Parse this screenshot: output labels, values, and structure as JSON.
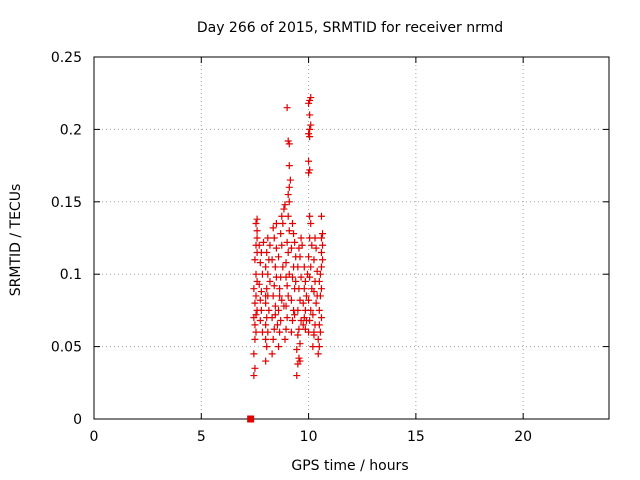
{
  "chart_data": {
    "type": "scatter",
    "title": "Day 266 of 2015, SRMTID for receiver nrmd",
    "xlabel": "GPS time / hours",
    "ylabel": "SRMTID / TECUs",
    "xlim": [
      0,
      24
    ],
    "ylim": [
      0,
      0.25
    ],
    "xticks": [
      0,
      5,
      10,
      15,
      20
    ],
    "yticks": [
      0,
      0.05,
      0.1,
      0.15,
      0.2,
      0.25
    ],
    "xtick_labels": [
      "0",
      "5",
      "10",
      "15",
      "20"
    ],
    "ytick_labels": [
      "0",
      "0.05",
      "0.1",
      "0.15",
      "0.2",
      "0.25"
    ],
    "grid": true,
    "marker_color": "#e00000",
    "points": [
      [
        7.45,
        0.03
      ],
      [
        7.5,
        0.035
      ],
      [
        7.45,
        0.045
      ],
      [
        7.5,
        0.055
      ],
      [
        7.55,
        0.06
      ],
      [
        7.5,
        0.065
      ],
      [
        7.45,
        0.07
      ],
      [
        7.55,
        0.072
      ],
      [
        7.6,
        0.075
      ],
      [
        7.5,
        0.08
      ],
      [
        7.55,
        0.085
      ],
      [
        7.45,
        0.09
      ],
      [
        7.6,
        0.095
      ],
      [
        7.55,
        0.1
      ],
      [
        7.5,
        0.11
      ],
      [
        7.6,
        0.115
      ],
      [
        7.55,
        0.12
      ],
      [
        7.6,
        0.125
      ],
      [
        7.6,
        0.13
      ],
      [
        7.55,
        0.135
      ],
      [
        7.6,
        0.138
      ],
      [
        7.75,
        0.082
      ],
      [
        7.8,
        0.088
      ],
      [
        7.7,
        0.093
      ],
      [
        7.85,
        0.1
      ],
      [
        7.75,
        0.108
      ],
      [
        7.8,
        0.115
      ],
      [
        7.7,
        0.12
      ],
      [
        7.9,
        0.122
      ],
      [
        7.8,
        0.075
      ],
      [
        7.75,
        0.068
      ],
      [
        7.85,
        0.06
      ],
      [
        8.0,
        0.04
      ],
      [
        8.05,
        0.05
      ],
      [
        8.0,
        0.055
      ],
      [
        8.1,
        0.06
      ],
      [
        8.0,
        0.065
      ],
      [
        8.05,
        0.07
      ],
      [
        8.15,
        0.075
      ],
      [
        8.0,
        0.08
      ],
      [
        8.1,
        0.085
      ],
      [
        8.05,
        0.09
      ],
      [
        8.2,
        0.095
      ],
      [
        8.1,
        0.1
      ],
      [
        8.0,
        0.105
      ],
      [
        8.15,
        0.11
      ],
      [
        8.05,
        0.115
      ],
      [
        8.2,
        0.12
      ],
      [
        8.1,
        0.125
      ],
      [
        8.0,
        0.085
      ],
      [
        8.3,
        0.045
      ],
      [
        8.35,
        0.055
      ],
      [
        8.4,
        0.062
      ],
      [
        8.3,
        0.07
      ],
      [
        8.45,
        0.078
      ],
      [
        8.35,
        0.085
      ],
      [
        8.4,
        0.092
      ],
      [
        8.5,
        0.098
      ],
      [
        8.45,
        0.105
      ],
      [
        8.3,
        0.11
      ],
      [
        8.5,
        0.118
      ],
      [
        8.4,
        0.125
      ],
      [
        8.35,
        0.132
      ],
      [
        8.5,
        0.135
      ],
      [
        8.45,
        0.072
      ],
      [
        8.55,
        0.065
      ],
      [
        8.6,
        0.05
      ],
      [
        8.65,
        0.06
      ],
      [
        8.7,
        0.068
      ],
      [
        8.6,
        0.075
      ],
      [
        8.75,
        0.082
      ],
      [
        8.65,
        0.09
      ],
      [
        8.7,
        0.098
      ],
      [
        8.8,
        0.105
      ],
      [
        8.6,
        0.112
      ],
      [
        8.75,
        0.12
      ],
      [
        8.7,
        0.128
      ],
      [
        8.8,
        0.135
      ],
      [
        8.75,
        0.14
      ],
      [
        8.85,
        0.145
      ],
      [
        8.9,
        0.148
      ],
      [
        8.65,
        0.085
      ],
      [
        8.85,
        0.078
      ],
      [
        8.9,
        0.055
      ],
      [
        8.95,
        0.062
      ],
      [
        9.0,
        0.07
      ],
      [
        8.95,
        0.078
      ],
      [
        9.05,
        0.085
      ],
      [
        9.0,
        0.092
      ],
      [
        9.1,
        0.1
      ],
      [
        8.95,
        0.108
      ],
      [
        9.05,
        0.115
      ],
      [
        9.0,
        0.122
      ],
      [
        9.1,
        0.13
      ],
      [
        9.05,
        0.14
      ],
      [
        9.1,
        0.15
      ],
      [
        9.05,
        0.155
      ],
      [
        9.1,
        0.16
      ],
      [
        9.15,
        0.165
      ],
      [
        9.1,
        0.175
      ],
      [
        9.05,
        0.192
      ],
      [
        9.1,
        0.19
      ],
      [
        9.0,
        0.215
      ],
      [
        8.95,
        0.098
      ],
      [
        9.2,
        0.06
      ],
      [
        9.25,
        0.068
      ],
      [
        9.3,
        0.075
      ],
      [
        9.2,
        0.082
      ],
      [
        9.35,
        0.09
      ],
      [
        9.25,
        0.098
      ],
      [
        9.3,
        0.105
      ],
      [
        9.4,
        0.112
      ],
      [
        9.2,
        0.118
      ],
      [
        9.35,
        0.122
      ],
      [
        9.3,
        0.128
      ],
      [
        9.25,
        0.135
      ],
      [
        9.4,
        0.095
      ],
      [
        9.35,
        0.072
      ],
      [
        9.45,
        0.03
      ],
      [
        9.5,
        0.038
      ],
      [
        9.55,
        0.042
      ],
      [
        9.45,
        0.048
      ],
      [
        9.6,
        0.052
      ],
      [
        9.5,
        0.058
      ],
      [
        9.55,
        0.062
      ],
      [
        9.65,
        0.068
      ],
      [
        9.5,
        0.075
      ],
      [
        9.6,
        0.082
      ],
      [
        9.55,
        0.09
      ],
      [
        9.65,
        0.098
      ],
      [
        9.5,
        0.105
      ],
      [
        9.6,
        0.112
      ],
      [
        9.55,
        0.118
      ],
      [
        9.65,
        0.125
      ],
      [
        9.7,
        0.12
      ],
      [
        9.6,
        0.04
      ],
      [
        9.75,
        0.065
      ],
      [
        9.8,
        0.07
      ],
      [
        9.85,
        0.075
      ],
      [
        9.75,
        0.08
      ],
      [
        9.9,
        0.085
      ],
      [
        9.8,
        0.09
      ],
      [
        9.85,
        0.095
      ],
      [
        9.95,
        0.1
      ],
      [
        9.8,
        0.105
      ],
      [
        9.9,
        0.068
      ],
      [
        9.85,
        0.062
      ],
      [
        10.0,
        0.06
      ],
      [
        10.05,
        0.068
      ],
      [
        10.1,
        0.075
      ],
      [
        10.0,
        0.082
      ],
      [
        10.15,
        0.09
      ],
      [
        10.05,
        0.098
      ],
      [
        10.1,
        0.105
      ],
      [
        10.0,
        0.112
      ],
      [
        10.15,
        0.12
      ],
      [
        10.05,
        0.125
      ],
      [
        10.1,
        0.135
      ],
      [
        10.05,
        0.14
      ],
      [
        10.0,
        0.17
      ],
      [
        10.05,
        0.172
      ],
      [
        10.0,
        0.178
      ],
      [
        10.05,
        0.195
      ],
      [
        10.0,
        0.197
      ],
      [
        10.05,
        0.2
      ],
      [
        10.1,
        0.203
      ],
      [
        10.05,
        0.21
      ],
      [
        10.0,
        0.218
      ],
      [
        10.05,
        0.22
      ],
      [
        10.1,
        0.222
      ],
      [
        10.2,
        0.05
      ],
      [
        10.25,
        0.058
      ],
      [
        10.3,
        0.065
      ],
      [
        10.2,
        0.072
      ],
      [
        10.35,
        0.08
      ],
      [
        10.25,
        0.088
      ],
      [
        10.3,
        0.095
      ],
      [
        10.4,
        0.102
      ],
      [
        10.25,
        0.11
      ],
      [
        10.35,
        0.118
      ],
      [
        10.3,
        0.125
      ],
      [
        10.25,
        0.06
      ],
      [
        10.4,
        0.085
      ],
      [
        10.45,
        0.045
      ],
      [
        10.5,
        0.05
      ],
      [
        10.45,
        0.055
      ],
      [
        10.55,
        0.06
      ],
      [
        10.5,
        0.065
      ],
      [
        10.6,
        0.07
      ],
      [
        10.5,
        0.075
      ],
      [
        10.55,
        0.085
      ],
      [
        10.6,
        0.09
      ],
      [
        10.5,
        0.095
      ],
      [
        10.55,
        0.1
      ],
      [
        10.6,
        0.105
      ],
      [
        10.65,
        0.11
      ],
      [
        10.6,
        0.115
      ],
      [
        10.65,
        0.12
      ],
      [
        10.6,
        0.125
      ],
      [
        10.65,
        0.128
      ],
      [
        10.6,
        0.14
      ]
    ],
    "highlight_marker": {
      "shape": "filled-square",
      "x": 7.3,
      "y": 0
    }
  }
}
